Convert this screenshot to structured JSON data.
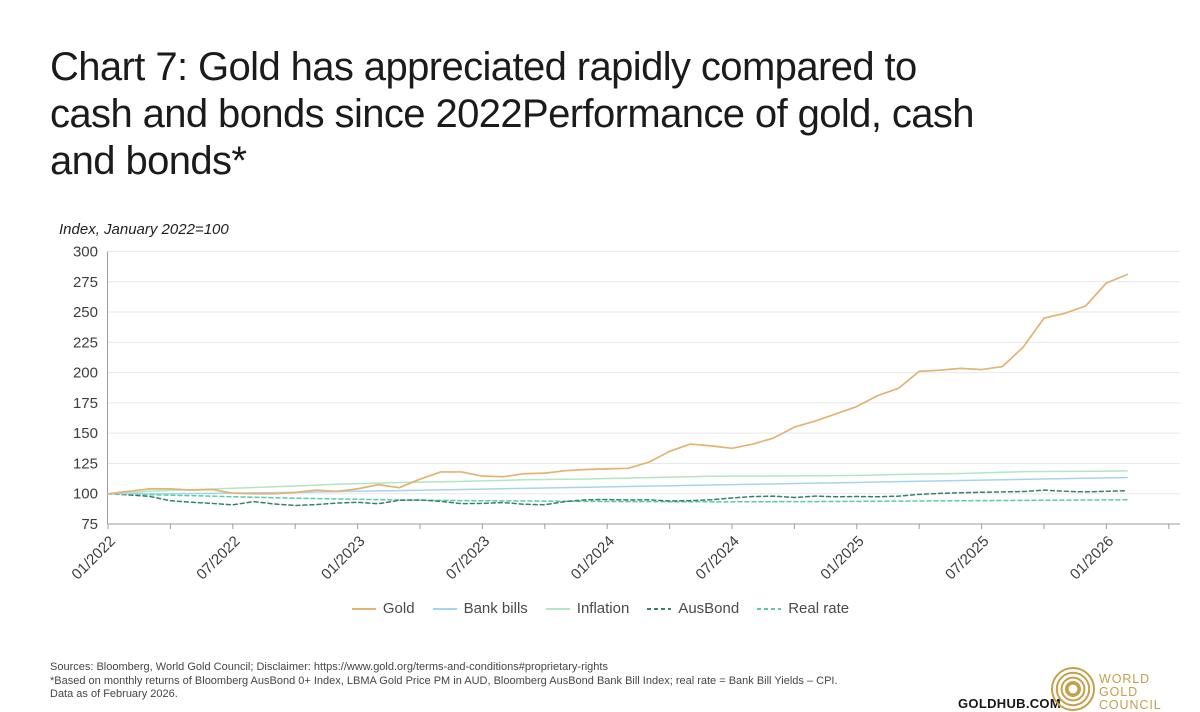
{
  "page": {
    "title_lines": [
      "Chart 7: Gold has appreciated rapidly compared to",
      "cash and bonds since 2022Performance of gold, cash",
      "and bonds*"
    ],
    "axis_note": "Index, January 2022=100"
  },
  "chart_data": {
    "type": "line",
    "title": "Chart 7: Gold has appreciated rapidly compared to cash and bonds since 2022",
    "subtitle": "Performance of gold, cash and bonds*",
    "ylabel": "Index, January 2022=100",
    "ylim": [
      75,
      300
    ],
    "ytick_step": 25,
    "grid": true,
    "legend_position": "bottom",
    "x_start": "01/2022",
    "x_end": "02/2026",
    "x_interval": "monthly",
    "xtick_labels": [
      "01/2022",
      "07/2022",
      "01/2023",
      "07/2023",
      "01/2024",
      "07/2024",
      "01/2025",
      "07/2025",
      "01/2026"
    ],
    "xtick_label_every_months": 6,
    "xtick_minor_every_months": 3,
    "series": [
      {
        "name": "Gold",
        "color": "#E5B272",
        "dash": false,
        "values": [
          100,
          102,
          104,
          104,
          103,
          103.5,
          100.5,
          100,
          100,
          101,
          103,
          102,
          104,
          107.5,
          105,
          112,
          118,
          118,
          114.5,
          114,
          116.5,
          117,
          119,
          120,
          120.5,
          121,
          126,
          135,
          141,
          139.5,
          137.5,
          141,
          146,
          155,
          160,
          166,
          172,
          181,
          187,
          201,
          202,
          203.5,
          202.5,
          205,
          221,
          245,
          249,
          255,
          274,
          281
        ]
      },
      {
        "name": "Bank bills",
        "color": "#A3D4F0",
        "dash": false,
        "values": [
          100,
          100,
          100.1,
          100.1,
          100.2,
          100.3,
          100.5,
          100.7,
          100.9,
          101.1,
          101.4,
          101.7,
          102,
          102.3,
          102.6,
          102.9,
          103.2,
          103.5,
          103.8,
          104.1,
          104.4,
          104.7,
          105,
          105.3,
          105.7,
          106,
          106.3,
          106.6,
          106.9,
          107.2,
          107.5,
          107.8,
          108.1,
          108.4,
          108.7,
          109,
          109.3,
          109.7,
          110,
          110.3,
          110.6,
          110.9,
          111.2,
          111.5,
          111.8,
          112.2,
          112.5,
          112.8,
          113.1,
          113.4
        ]
      },
      {
        "name": "Inflation",
        "color": "#B0E7C4",
        "dash": false,
        "values": [
          100,
          100.7,
          102.1,
          102.7,
          103.3,
          103.9,
          104.5,
          105.1,
          105.8,
          106.4,
          107.1,
          107.8,
          108.3,
          108.8,
          109.3,
          109.6,
          109.9,
          110.2,
          110.6,
          111,
          111.5,
          111.7,
          112,
          112.2,
          112.6,
          112.9,
          113.3,
          113.7,
          114,
          114.4,
          114.5,
          114.5,
          114.6,
          114.7,
          114.8,
          114.9,
          115.2,
          115.5,
          115.9,
          116.2,
          116.4,
          116.7,
          117.2,
          117.7,
          118.2,
          118.3,
          118.5,
          118.6,
          118.7,
          118.9
        ]
      },
      {
        "name": "AusBond",
        "color": "#37806B",
        "dash": true,
        "values": [
          100,
          99,
          97.8,
          94.2,
          93,
          92,
          90.8,
          93.5,
          91.5,
          90.3,
          91,
          92.3,
          92.9,
          91.7,
          94.6,
          94.8,
          93.7,
          91.8,
          92,
          92.7,
          91.3,
          90.9,
          93.6,
          95,
          95.2,
          94.8,
          95,
          94,
          94.3,
          95,
          96.5,
          97.7,
          98,
          96.9,
          98,
          97.5,
          97.7,
          97.5,
          98,
          99.5,
          100.3,
          100.8,
          101.2,
          101.5,
          101.8,
          103,
          102,
          101.5,
          102,
          102.5
        ]
      },
      {
        "name": "Real rate",
        "color": "#59CBAB",
        "dash": true,
        "values": [
          100,
          99.6,
          99.2,
          98.8,
          98.4,
          98,
          97.5,
          97.1,
          96.7,
          96.3,
          96,
          95.7,
          95.4,
          95.1,
          94.9,
          94.7,
          94.5,
          94.3,
          94.2,
          94.1,
          94,
          93.9,
          93.8,
          93.7,
          93.6,
          93.5,
          93.5,
          93.4,
          93.4,
          93.3,
          93.3,
          93.4,
          93.4,
          93.5,
          93.5,
          93.6,
          93.7,
          93.8,
          93.9,
          94,
          94.1,
          94.2,
          94.3,
          94.4,
          94.5,
          94.6,
          94.7,
          94.8,
          94.9,
          95
        ]
      }
    ],
    "axis_colors": {
      "grid": "#E8E8E8",
      "axis": "#9C9C9C",
      "tick_text": "#3D3D3D"
    }
  },
  "footer": {
    "line1": "Sources: Bloomberg, World Gold Council; Disclaimer: https://www.gold.org/terms-and-conditions#proprietary-rights",
    "line2": "*Based on monthly returns of Bloomberg AusBond 0+ Index, LBMA Gold Price PM in AUD, Bloomberg AusBond Bank Bill Index; real rate = Bank Bill Yields – CPI.",
    "line3": "Data as of February 2026."
  },
  "branding": {
    "goldhub": "GOLDHUB.COM",
    "logo_lines": [
      "WORLD",
      "GOLD",
      "COUNCIL"
    ],
    "logo_color": "#C5A04A"
  }
}
